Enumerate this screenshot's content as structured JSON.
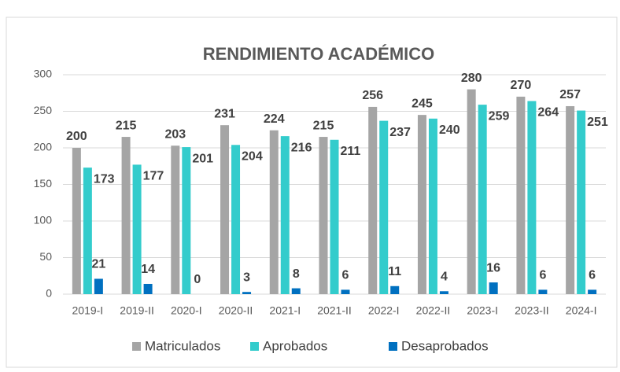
{
  "chart_data": {
    "type": "bar",
    "title": "RENDIMIENTO ACADÉMICO",
    "categories": [
      "2019-I",
      "2019-II",
      "2020-I",
      "2020-II",
      "2021-I",
      "2021-II",
      "2022-I",
      "2022-II",
      "2023-I",
      "2023-II",
      "2024-I"
    ],
    "series": [
      {
        "name": "Matriculados",
        "color": "#a5a5a5",
        "values": [
          200,
          215,
          203,
          231,
          224,
          215,
          256,
          245,
          280,
          270,
          257
        ]
      },
      {
        "name": "Aprobados",
        "color": "#33cccc",
        "values": [
          173,
          177,
          201,
          204,
          216,
          211,
          237,
          240,
          259,
          264,
          251
        ]
      },
      {
        "name": "Desaprobados",
        "color": "#0070c0",
        "values": [
          21,
          14,
          0,
          3,
          8,
          6,
          11,
          4,
          16,
          6,
          6
        ]
      }
    ],
    "ylim": [
      0,
      300
    ],
    "yticks": [
      0,
      50,
      100,
      150,
      200,
      250,
      300
    ],
    "grid": true,
    "legend": "bottom"
  }
}
